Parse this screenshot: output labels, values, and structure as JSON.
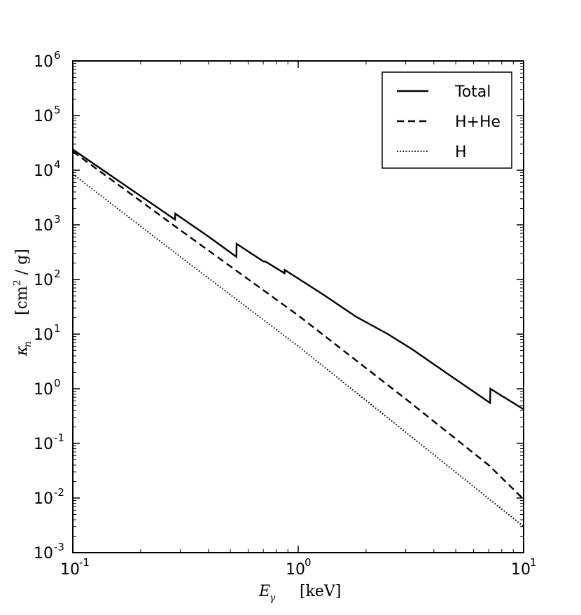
{
  "chart_data": {
    "type": "line",
    "x_scale": "log",
    "y_scale": "log",
    "xlim": [
      0.1,
      10
    ],
    "ylim": [
      0.001,
      1000000
    ],
    "x_ticks": [
      {
        "value": 0.1,
        "base": "10",
        "exp": "-1"
      },
      {
        "value": 1,
        "base": "10",
        "exp": "0"
      },
      {
        "value": 10,
        "base": "10",
        "exp": "1"
      }
    ],
    "y_ticks": [
      {
        "value": 0.001,
        "base": "10",
        "exp": "-3"
      },
      {
        "value": 0.01,
        "base": "10",
        "exp": "-2"
      },
      {
        "value": 0.1,
        "base": "10",
        "exp": "-1"
      },
      {
        "value": 1,
        "base": "10",
        "exp": "0"
      },
      {
        "value": 10,
        "base": "10",
        "exp": "1"
      },
      {
        "value": 100,
        "base": "10",
        "exp": "2"
      },
      {
        "value": 1000,
        "base": "10",
        "exp": "3"
      },
      {
        "value": 10000,
        "base": "10",
        "exp": "4"
      },
      {
        "value": 100000,
        "base": "10",
        "exp": "5"
      },
      {
        "value": 1000000,
        "base": "10",
        "exp": "6"
      }
    ],
    "xlabel": {
      "symbol": "E",
      "sub": "γ",
      "unit": "[keV]"
    },
    "ylabel": {
      "symbol": "κ",
      "sub": "n",
      "unit_pre": "[cm",
      "unit_exp": "2",
      "unit_post": " / g]"
    },
    "legend_position": "top-right",
    "grid": false,
    "series": [
      {
        "name": "Total",
        "style": "solid",
        "points": [
          [
            0.1,
            24000
          ],
          [
            0.284,
            1250
          ],
          [
            0.285,
            1600
          ],
          [
            0.4,
            610
          ],
          [
            0.532,
            260
          ],
          [
            0.533,
            450
          ],
          [
            0.7,
            215
          ],
          [
            0.72,
            210
          ],
          [
            0.87,
            130
          ],
          [
            0.871,
            150
          ],
          [
            1.3,
            52
          ],
          [
            1.8,
            21
          ],
          [
            2.5,
            10
          ],
          [
            3.2,
            5.3
          ],
          [
            4.0,
            2.8
          ],
          [
            7.1,
            0.55
          ],
          [
            7.12,
            1.0
          ],
          [
            10,
            0.42
          ]
        ]
      },
      {
        "name": "H+He",
        "style": "dashed",
        "points": [
          [
            0.1,
            22000
          ],
          [
            0.3,
            800
          ],
          [
            1,
            22
          ],
          [
            3,
            0.65
          ],
          [
            7,
            0.04
          ],
          [
            10,
            0.0095
          ]
        ]
      },
      {
        "name": "H",
        "style": "dotted",
        "points": [
          [
            0.1,
            8500
          ],
          [
            0.3,
            260
          ],
          [
            1,
            6.0
          ],
          [
            3,
            0.16
          ],
          [
            10,
            0.003
          ]
        ]
      }
    ]
  }
}
